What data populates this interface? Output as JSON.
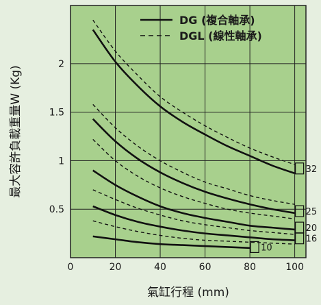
{
  "colors": {
    "page_bg": "#e6efe0",
    "plot_bg": "#a8d08d",
    "grid": "#222222",
    "line": "#111111",
    "text": "#1a1a1a"
  },
  "chart_data": {
    "type": "line",
    "title": "",
    "xlabel": "氣缸行程 (mm)",
    "ylabel": "最大容許負載重量W (Kg)",
    "xlim": [
      0,
      105
    ],
    "ylim": [
      0,
      2.6
    ],
    "x_ticks": [
      0,
      20,
      40,
      60,
      80,
      100
    ],
    "x_tick_labels": [
      "0",
      "20",
      "40",
      "60",
      "80",
      "100"
    ],
    "y_ticks": [
      0.5,
      1,
      1.5,
      2
    ],
    "y_tick_labels": [
      "0.5",
      "1",
      "1.5",
      "2"
    ],
    "grid": true,
    "legend_position": "top-right",
    "legend": [
      {
        "label": "DG (複合軸承)",
        "style": "solid"
      },
      {
        "label": "DGL (線性軸承)",
        "style": "dashed"
      }
    ],
    "series": [
      {
        "name": "32",
        "style": "solid",
        "x": [
          10,
          20,
          30,
          40,
          50,
          60,
          70,
          80,
          90,
          100
        ],
        "values": [
          2.35,
          2.02,
          1.77,
          1.56,
          1.4,
          1.27,
          1.15,
          1.05,
          0.95,
          0.87
        ]
      },
      {
        "name": "25",
        "style": "solid",
        "x": [
          10,
          20,
          30,
          40,
          50,
          60,
          70,
          80,
          90,
          100
        ],
        "values": [
          1.43,
          1.2,
          1.02,
          0.88,
          0.77,
          0.68,
          0.61,
          0.55,
          0.5,
          0.46
        ]
      },
      {
        "name": "20",
        "style": "solid",
        "x": [
          10,
          20,
          30,
          40,
          50,
          60,
          70,
          80,
          90,
          100
        ],
        "values": [
          0.9,
          0.75,
          0.63,
          0.53,
          0.46,
          0.41,
          0.37,
          0.33,
          0.31,
          0.29
        ]
      },
      {
        "name": "16",
        "style": "solid",
        "x": [
          10,
          20,
          30,
          40,
          50,
          60,
          70,
          80,
          90,
          100
        ],
        "values": [
          0.53,
          0.44,
          0.37,
          0.32,
          0.28,
          0.25,
          0.23,
          0.21,
          0.19,
          0.18
        ]
      },
      {
        "name": "10",
        "style": "solid",
        "x": [
          10,
          20,
          30,
          40,
          50,
          60,
          70,
          80
        ],
        "values": [
          0.22,
          0.19,
          0.16,
          0.14,
          0.13,
          0.12,
          0.11,
          0.1
        ]
      },
      {
        "name": "32",
        "style": "dashed",
        "x": [
          10,
          20,
          30,
          40,
          50,
          60,
          70,
          80,
          90,
          100
        ],
        "values": [
          2.45,
          2.13,
          1.88,
          1.66,
          1.5,
          1.36,
          1.24,
          1.13,
          1.04,
          0.96
        ]
      },
      {
        "name": "25",
        "style": "dashed",
        "x": [
          10,
          20,
          30,
          40,
          50,
          60,
          70,
          80,
          90,
          100
        ],
        "values": [
          1.58,
          1.34,
          1.15,
          1.0,
          0.88,
          0.78,
          0.71,
          0.64,
          0.59,
          0.55
        ]
      },
      {
        "name": "20",
        "style": "dashed",
        "x": [
          10,
          20,
          30,
          40,
          50,
          60,
          70,
          80,
          90,
          100
        ],
        "values": [
          1.22,
          1.0,
          0.84,
          0.72,
          0.63,
          0.56,
          0.5,
          0.46,
          0.43,
          0.4
        ]
      },
      {
        "name": "16",
        "style": "dashed",
        "x": [
          10,
          20,
          30,
          40,
          50,
          60,
          70,
          80,
          90,
          100
        ],
        "values": [
          0.7,
          0.6,
          0.51,
          0.44,
          0.38,
          0.34,
          0.31,
          0.28,
          0.26,
          0.24
        ]
      },
      {
        "name": "10",
        "style": "dashed",
        "x": [
          10,
          20,
          30,
          40,
          50,
          60,
          70,
          80,
          90,
          100
        ],
        "values": [
          0.38,
          0.32,
          0.27,
          0.23,
          0.2,
          0.18,
          0.17,
          0.16,
          0.15,
          0.14
        ]
      }
    ],
    "curve_labels": [
      {
        "text": "32",
        "x": 100,
        "y": 0.92
      },
      {
        "text": "25",
        "x": 100,
        "y": 0.48
      },
      {
        "text": "20",
        "x": 100,
        "y": 0.31
      },
      {
        "text": "16",
        "x": 100,
        "y": 0.2
      },
      {
        "text": "10",
        "x": 80,
        "y": 0.11
      }
    ]
  }
}
